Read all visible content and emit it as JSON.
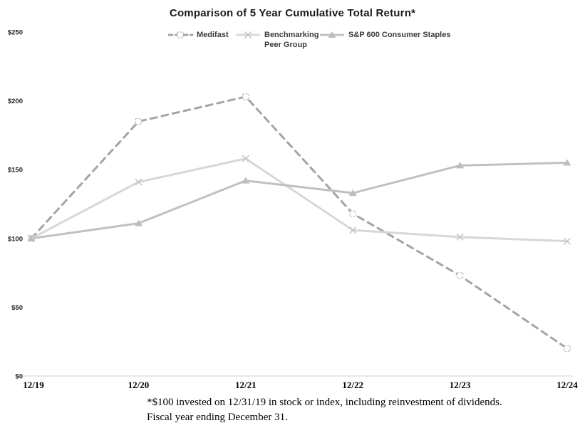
{
  "title": "Comparison of 5 Year Cumulative Total Return*",
  "legend": {
    "items": [
      {
        "line1": "Medifast",
        "line2": ""
      },
      {
        "line1": "Benchmarking",
        "line2": "Peer Group"
      },
      {
        "line1": "S&P 600 Consumer Staples",
        "line2": ""
      }
    ]
  },
  "footnote": {
    "line1": "*$100 invested on 12/31/19 in stock or index, including reinvestment of dividends.",
    "line2": "Fiscal year ending December 31."
  },
  "chart_data": {
    "type": "line",
    "title": "Comparison of 5 Year Cumulative Total Return*",
    "categories": [
      "12/19",
      "12/20",
      "12/21",
      "12/22",
      "12/23",
      "12/24"
    ],
    "series": [
      {
        "name": "Medifast",
        "values": [
          100,
          185,
          203,
          118,
          73,
          20
        ],
        "color": "#a4a4a4",
        "line_style": "dashed",
        "marker": "square-open",
        "marker_color": "#bdbdbd"
      },
      {
        "name": "Benchmarking Peer Group",
        "values": [
          100,
          141,
          158,
          106,
          101,
          98
        ],
        "color": "#d7d7d7",
        "line_style": "solid",
        "marker": "x",
        "marker_color": "#c6c6c6"
      },
      {
        "name": "S&P 600 Consumer Staples",
        "values": [
          100,
          111,
          142,
          133,
          153,
          155
        ],
        "color": "#c0c0c0",
        "line_style": "solid",
        "marker": "triangle",
        "marker_color": "#bdbdbd"
      }
    ],
    "xlabel": "",
    "ylabel": "",
    "ylim": [
      0,
      250
    ],
    "yticks": [
      0,
      50,
      100,
      150,
      200,
      250
    ],
    "ytick_labels": [
      "$0",
      "$50",
      "$100",
      "$150",
      "$200",
      "$250"
    ],
    "grid": false,
    "legend_position": "top",
    "axis_color": "#d9d9d9"
  }
}
